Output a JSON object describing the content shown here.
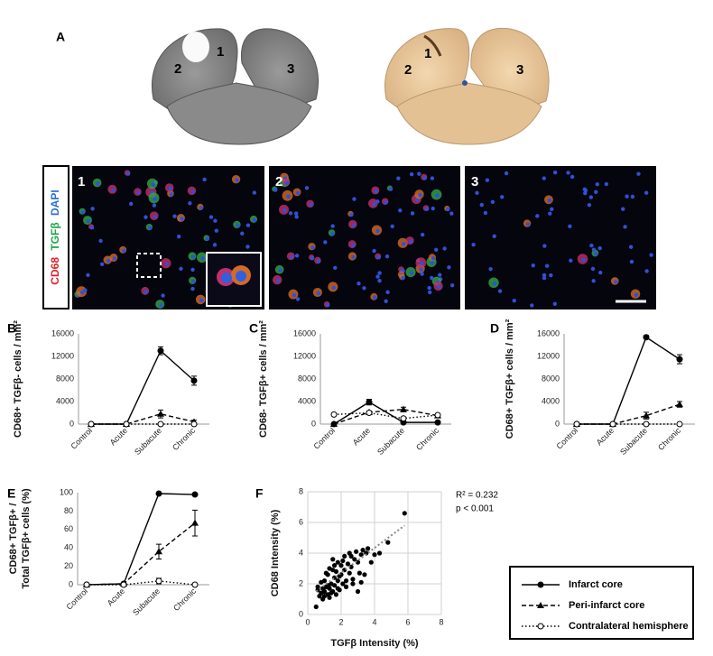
{
  "panel_a": {
    "label": "A",
    "mri_regions": [
      "1",
      "2",
      "3"
    ],
    "gross_regions": [
      "1",
      "2",
      "3"
    ]
  },
  "micrographs": {
    "stain": [
      "CD68",
      "TGFβ",
      "DAPI"
    ],
    "stain_colors": [
      "#e0202a",
      "#1aa64a",
      "#2a6fd6"
    ],
    "regions": [
      "1",
      "2",
      "3"
    ]
  },
  "chart_data": [
    {
      "type": "line",
      "panel": "B",
      "y_label": [
        "CD68+ TGFβ- cells / mm²"
      ],
      "categories": [
        "Control",
        "Acute",
        "Subacute",
        "Chronic"
      ],
      "ylim": [
        0,
        16000
      ],
      "yticks": [
        0,
        4000,
        8000,
        12000,
        16000
      ],
      "series": [
        {
          "marker": "circle",
          "dash": "solid",
          "color": "#000",
          "values": [
            0,
            0,
            13000,
            7700
          ],
          "errors": [
            0,
            0,
            700,
            800
          ]
        },
        {
          "marker": "triangle",
          "dash": "dashed",
          "color": "#000",
          "values": [
            0,
            0,
            1800,
            400
          ],
          "errors": [
            0,
            0,
            700,
            300
          ]
        },
        {
          "marker": "open-circle",
          "dash": "dotted",
          "color": "#000",
          "values": [
            0,
            0,
            0,
            0
          ],
          "errors": [
            0,
            0,
            0,
            0
          ]
        }
      ]
    },
    {
      "type": "line",
      "panel": "C",
      "y_label": [
        "CD68- TGFβ+ cells / mm²"
      ],
      "categories": [
        "Control",
        "Acute",
        "Subacute",
        "Chronic"
      ],
      "ylim": [
        0,
        16000
      ],
      "yticks": [
        0,
        4000,
        8000,
        12000,
        16000
      ],
      "series": [
        {
          "marker": "circle",
          "dash": "solid",
          "color": "#000",
          "values": [
            0,
            3900,
            300,
            300
          ],
          "errors": [
            0,
            500,
            100,
            100
          ]
        },
        {
          "marker": "triangle",
          "dash": "dashed",
          "color": "#000",
          "values": [
            0,
            2100,
            2600,
            1500
          ],
          "errors": [
            0,
            200,
            400,
            300
          ]
        },
        {
          "marker": "open-circle",
          "dash": "dotted",
          "color": "#000",
          "values": [
            1700,
            2000,
            1000,
            1600
          ],
          "errors": [
            200,
            200,
            200,
            200
          ]
        }
      ]
    },
    {
      "type": "line",
      "panel": "D",
      "y_label": [
        "CD68+ TGFβ+ cells / mm²"
      ],
      "categories": [
        "Control",
        "Acute",
        "Subacute",
        "Chronic"
      ],
      "ylim": [
        0,
        16000
      ],
      "yticks": [
        0,
        4000,
        8000,
        12000,
        16000
      ],
      "series": [
        {
          "marker": "circle",
          "dash": "solid",
          "color": "#000",
          "values": [
            0,
            0,
            15400,
            11500
          ],
          "errors": [
            0,
            0,
            300,
            800
          ]
        },
        {
          "marker": "triangle",
          "dash": "dashed",
          "color": "#000",
          "values": [
            0,
            0,
            1500,
            3500
          ],
          "errors": [
            0,
            0,
            600,
            500
          ]
        },
        {
          "marker": "open-circle",
          "dash": "dotted",
          "color": "#000",
          "values": [
            0,
            0,
            0,
            0
          ],
          "errors": [
            0,
            0,
            0,
            0
          ]
        }
      ]
    },
    {
      "type": "line",
      "panel": "E",
      "y_label": [
        "CD68+ TGFβ+ /",
        "Total TGFβ+ cells (%)"
      ],
      "categories": [
        "Control",
        "Acute",
        "Subacute",
        "Chronic"
      ],
      "ylim": [
        0,
        100
      ],
      "yticks": [
        0,
        20,
        40,
        60,
        80,
        100
      ],
      "series": [
        {
          "marker": "circle",
          "dash": "solid",
          "color": "#000",
          "values": [
            0,
            1,
            99,
            98
          ],
          "errors": [
            0,
            0,
            1,
            1
          ]
        },
        {
          "marker": "triangle",
          "dash": "dashed",
          "color": "#000",
          "values": [
            0,
            1,
            36,
            67
          ],
          "errors": [
            0,
            0,
            8,
            14
          ]
        },
        {
          "marker": "open-circle",
          "dash": "dotted",
          "color": "#000",
          "values": [
            0,
            0,
            4,
            0
          ],
          "errors": [
            0,
            0,
            3,
            0
          ]
        }
      ]
    },
    {
      "type": "scatter",
      "panel": "F",
      "x_label": "TGFβ Intensity (%)",
      "y_label": [
        "CD68 Intensity (%)"
      ],
      "annotations": [
        "R² = 0.232",
        "p < 0.001"
      ],
      "grid": true,
      "color": "#000",
      "xlim": [
        0,
        8
      ],
      "xticks": [
        0,
        2,
        4,
        6,
        8
      ],
      "ylim": [
        0,
        8
      ],
      "yticks": [
        0,
        2,
        4,
        6,
        8
      ],
      "x": [
        0.5,
        0.6,
        0.7,
        0.8,
        0.9,
        1.0,
        1.0,
        1.1,
        1.2,
        1.2,
        1.3,
        1.3,
        1.4,
        1.5,
        1.5,
        1.6,
        1.6,
        1.7,
        1.8,
        1.8,
        1.9,
        2.0,
        2.0,
        2.1,
        2.2,
        2.2,
        2.3,
        2.4,
        2.5,
        2.5,
        2.6,
        2.7,
        2.8,
        2.9,
        3.0,
        3.0,
        3.1,
        3.2,
        3.3,
        3.4,
        3.5,
        3.6,
        3.8,
        4.0,
        4.3,
        4.8,
        5.8,
        0.6,
        0.8,
        1.0,
        1.1,
        1.2,
        1.4,
        1.5,
        1.7,
        1.9,
        2.1,
        2.3,
        1.3,
        0.9,
        1.6,
        2.6,
        3.2,
        1.8,
        2.7
      ],
      "y": [
        0.5,
        1.6,
        1.2,
        1.4,
        1.0,
        1.5,
        2.2,
        1.8,
        1.3,
        2.6,
        1.7,
        3.0,
        2.0,
        1.5,
        3.6,
        2.4,
        1.9,
        2.8,
        2.2,
        3.4,
        1.6,
        3.2,
        2.6,
        2.0,
        3.8,
        2.9,
        1.8,
        3.3,
        2.7,
        4.0,
        3.1,
        2.3,
        3.6,
        4.1,
        1.5,
        3.4,
        2.7,
        3.9,
        4.2,
        2.6,
        4.0,
        4.3,
        3.4,
        3.9,
        4.0,
        4.7,
        6.6,
        1.8,
        2.1,
        1.2,
        2.7,
        1.9,
        1.4,
        2.9,
        1.3,
        2.5,
        3.5,
        2.2,
        1.1,
        1.7,
        3.2,
        3.8,
        2.1,
        1.7,
        2.0
      ],
      "trendline": {
        "x": [
          0.5,
          5.8
        ],
        "y": [
          1.5,
          5.8
        ],
        "color": "#888"
      }
    }
  ],
  "legend": {
    "entries": [
      {
        "name": "Infarct core",
        "marker": "circle",
        "dash": "solid"
      },
      {
        "name": "Peri-infarct core",
        "marker": "triangle",
        "dash": "dashed"
      },
      {
        "name": "Contralateral hemisphere",
        "marker": "open-circle",
        "dash": "dotted"
      }
    ]
  }
}
